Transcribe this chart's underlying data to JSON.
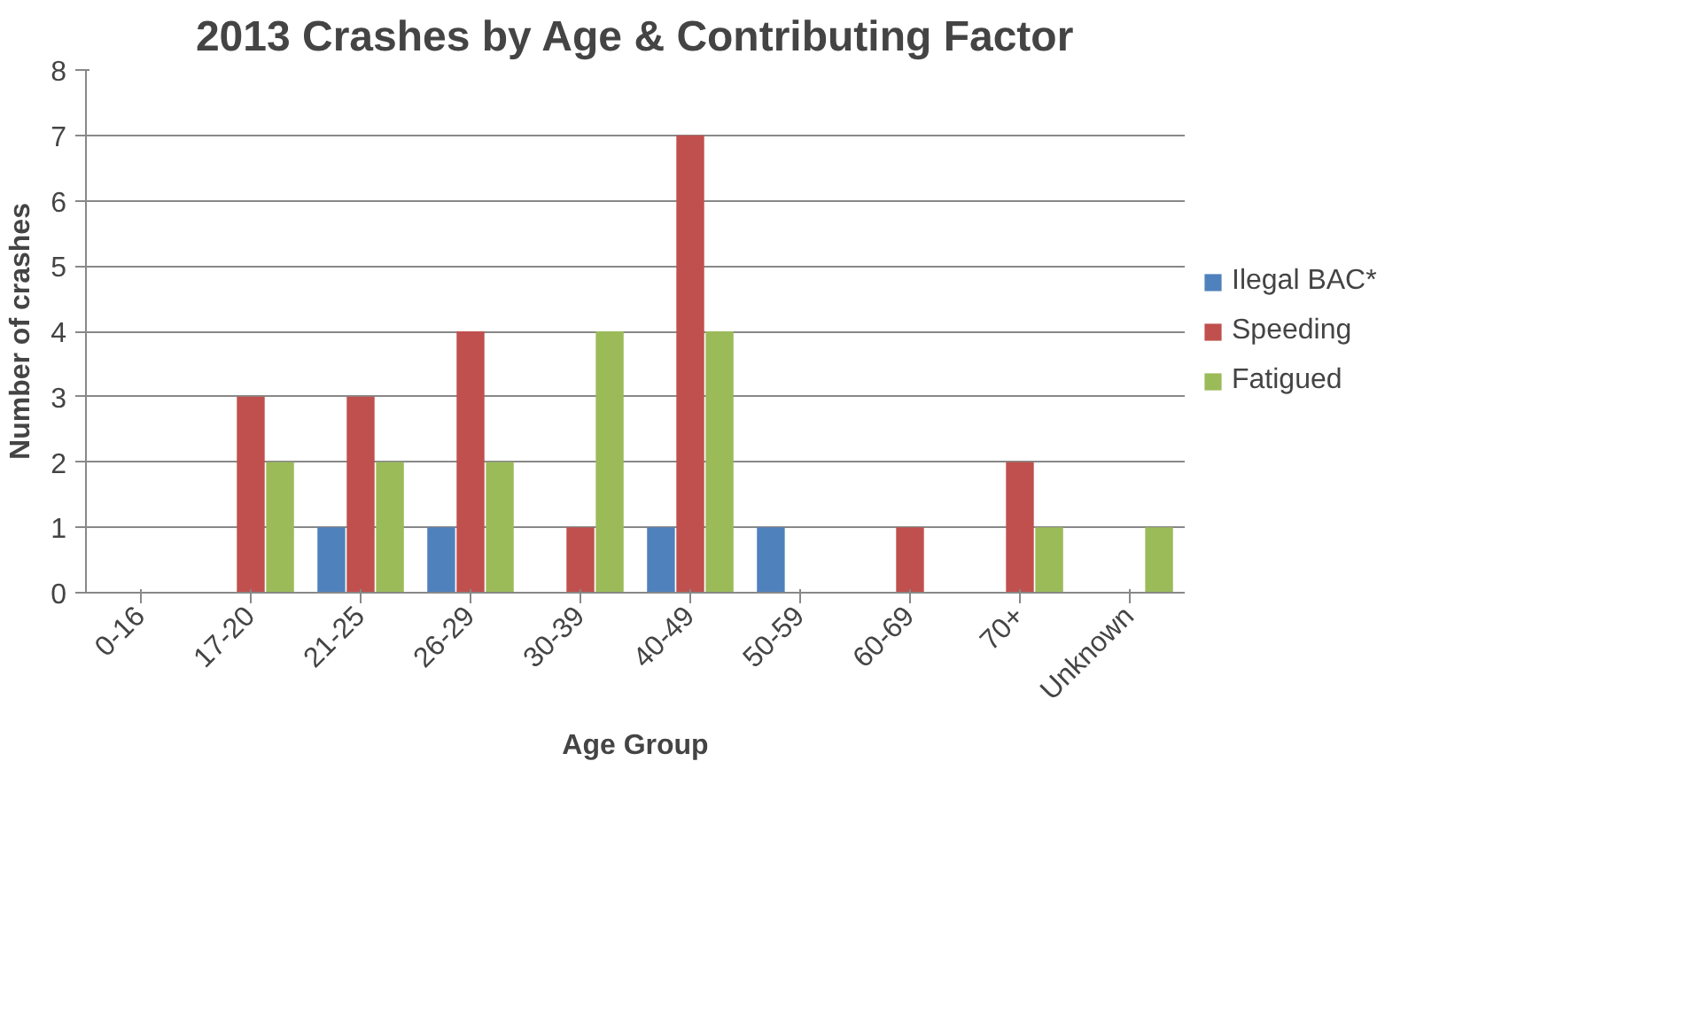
{
  "chart_data": {
    "type": "bar",
    "title": "2013 Crashes by Age & Contributing Factor",
    "xlabel": "Age Group",
    "ylabel": "Number of crashes",
    "categories": [
      "0-16",
      "17-20",
      "21-25",
      "26-29",
      "30-39",
      "40-49",
      "50-59",
      "60-69",
      "70+",
      "Unknown"
    ],
    "series": [
      {
        "name": "Ilegal BAC*",
        "color": "#4f81bd",
        "values": [
          0,
          0,
          1,
          1,
          0,
          1,
          1,
          0,
          0,
          0
        ]
      },
      {
        "name": "Speeding",
        "color": "#c0504d",
        "values": [
          0,
          3,
          3,
          4,
          1,
          7,
          0,
          1,
          2,
          0
        ]
      },
      {
        "name": "Fatigued",
        "color": "#9bbb59",
        "values": [
          0,
          2,
          2,
          2,
          4,
          4,
          0,
          0,
          1,
          1
        ]
      }
    ],
    "ylim": [
      0,
      8
    ],
    "yticks": [
      0,
      1,
      2,
      3,
      4,
      5,
      6,
      7,
      8
    ],
    "grid": "y",
    "legend": "right"
  }
}
